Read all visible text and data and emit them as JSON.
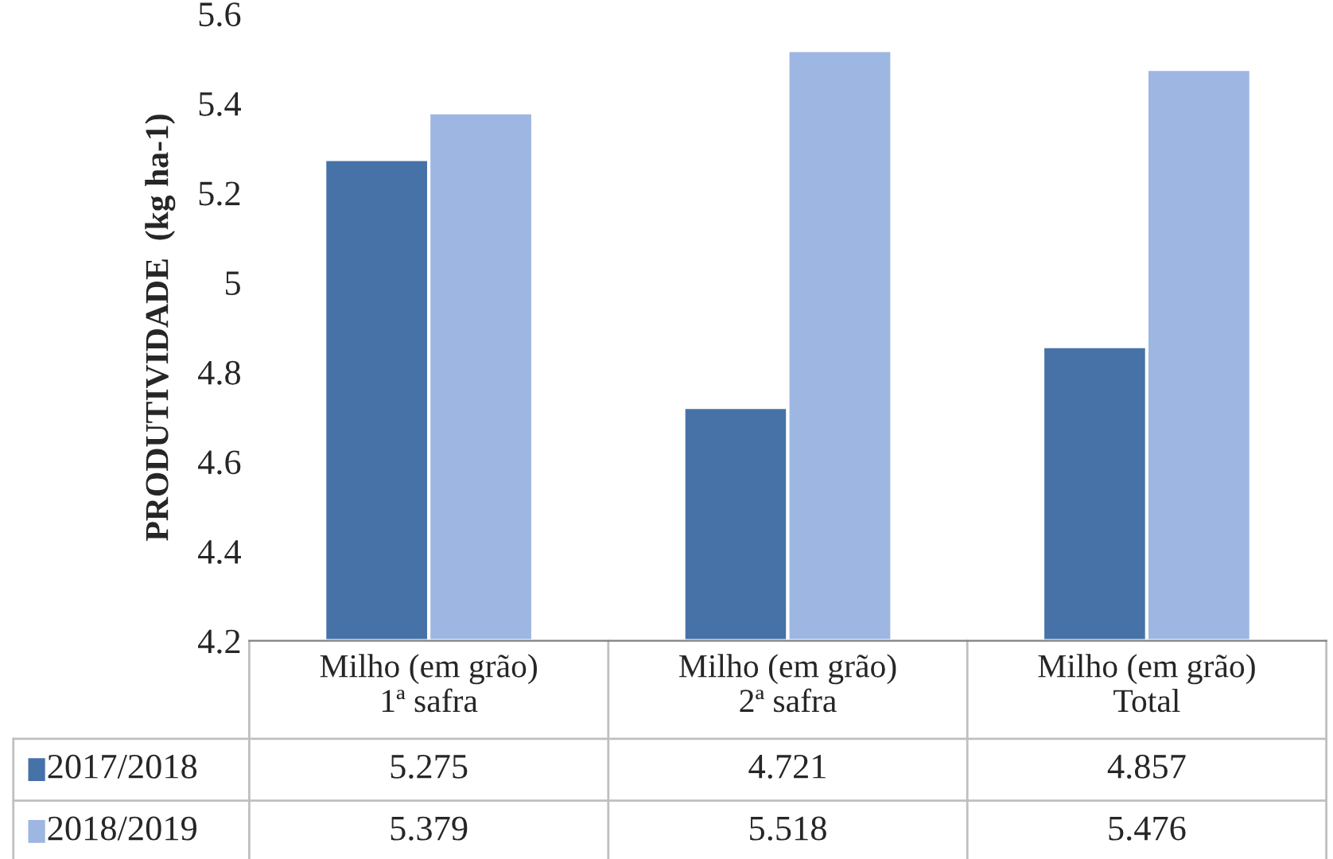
{
  "chart_data": {
    "type": "bar",
    "ylabel": "PRODUTIVIDADE  (kg ha-1)",
    "categories": [
      "Milho (em grão)\n1ª safra",
      "Milho (em grão)\n2ª safra",
      "Milho (em grão)\nTotal"
    ],
    "series": [
      {
        "name": "2017/2018",
        "color": "#4672a8",
        "values": [
          5.275,
          4.721,
          4.857
        ]
      },
      {
        "name": "2018/2019",
        "color": "#9db6e2",
        "values": [
          5.379,
          5.518,
          5.476
        ]
      }
    ],
    "ylim": [
      4.2,
      5.6
    ],
    "yticks": [
      4.2,
      4.4,
      4.6,
      4.8,
      5,
      5.2,
      5.4,
      5.6
    ],
    "data_labels": true,
    "legend": "bottom",
    "grid": false
  }
}
